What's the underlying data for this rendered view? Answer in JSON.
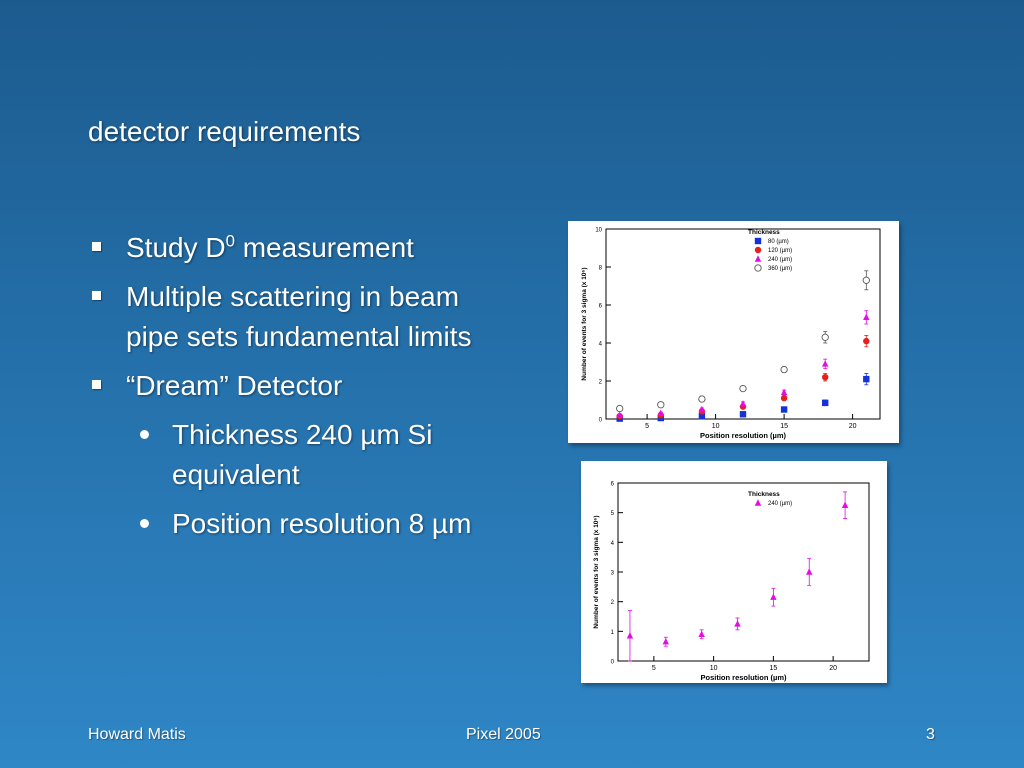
{
  "slide": {
    "title": "detector requirements",
    "bullets": [
      {
        "text_main": "Study D",
        "sup": "0",
        "text_after": " measurement"
      },
      {
        "text": "Multiple scattering in beam pipe sets fundamental limits"
      },
      {
        "text": "“Dream” Detector"
      }
    ],
    "sub_bullets": [
      {
        "text": "Thickness 240 µm Si equivalent"
      },
      {
        "text": "Position resolution 8 µm"
      }
    ],
    "footer": {
      "left": "Howard Matis",
      "center": "Pixel 2005",
      "right": "3"
    }
  },
  "colors": {
    "background_top": "#1c5b8e",
    "background_bottom": "#2f87c6",
    "text": "#ffffff",
    "magenta": "#e60ae6",
    "red": "#e8201c",
    "blue": "#1432d8"
  },
  "chart_data": [
    {
      "type": "scatter",
      "title": "",
      "xlabel": "Position resolution  (µm)",
      "ylabel": "Number of events for 3 sigma (x 10⁶)",
      "xlim": [
        2,
        22
      ],
      "ylim": [
        0,
        10
      ],
      "xticks": [
        5,
        10,
        15,
        20
      ],
      "yticks": [
        0,
        2,
        4,
        6,
        8,
        10
      ],
      "legend_title": "Thickness",
      "legend_placement": "top-center",
      "series": [
        {
          "name": "80  (µm)",
          "marker": "square",
          "color": "#1432d8",
          "x": [
            3,
            6,
            9,
            12,
            15,
            18,
            21
          ],
          "y": [
            0.02,
            0.05,
            0.15,
            0.25,
            0.5,
            0.85,
            2.1
          ],
          "err": [
            0.03,
            0.04,
            0.05,
            0.08,
            0.1,
            0.15,
            0.3
          ]
        },
        {
          "name": "120  (µm)",
          "marker": "circle",
          "color": "#e8201c",
          "x": [
            3,
            6,
            9,
            12,
            15,
            18,
            21
          ],
          "y": [
            0.15,
            0.2,
            0.4,
            0.65,
            1.1,
            2.2,
            4.1
          ],
          "err": [
            0.05,
            0.06,
            0.08,
            0.1,
            0.12,
            0.2,
            0.3
          ]
        },
        {
          "name": "240  (µm)",
          "marker": "triangle",
          "color": "#e60ae6",
          "x": [
            3,
            6,
            9,
            12,
            15,
            18,
            21
          ],
          "y": [
            0.2,
            0.3,
            0.5,
            0.8,
            1.4,
            2.9,
            5.35
          ],
          "err": [
            0.05,
            0.06,
            0.08,
            0.1,
            0.12,
            0.25,
            0.35
          ]
        },
        {
          "name": "360  (µm)",
          "marker": "open-circle",
          "color": "#555555",
          "x": [
            3,
            6,
            9,
            12,
            15,
            18,
            21
          ],
          "y": [
            0.55,
            0.75,
            1.05,
            1.6,
            2.6,
            4.3,
            7.3
          ],
          "err": [
            0.05,
            0.06,
            0.1,
            0.12,
            0.15,
            0.3,
            0.5
          ]
        }
      ]
    },
    {
      "type": "scatter",
      "title": "",
      "xlabel": "Position resolution  (µm)",
      "ylabel": "Number of events for 3 sigma (x 10⁶)",
      "xlim": [
        2,
        23
      ],
      "ylim": [
        0,
        6
      ],
      "xticks": [
        5,
        10,
        15,
        20
      ],
      "yticks": [
        0,
        1,
        2,
        3,
        4,
        5,
        6
      ],
      "legend_title": "Thickness",
      "legend_placement": "top-center",
      "series": [
        {
          "name": "240  (µm)",
          "marker": "triangle",
          "color": "#e60ae6",
          "x": [
            3,
            6,
            9,
            12,
            15,
            18,
            21
          ],
          "y": [
            0.85,
            0.65,
            0.9,
            1.25,
            2.15,
            3.0,
            5.25
          ],
          "err": [
            0.85,
            0.15,
            0.15,
            0.2,
            0.3,
            0.45,
            0.45
          ]
        }
      ]
    }
  ]
}
